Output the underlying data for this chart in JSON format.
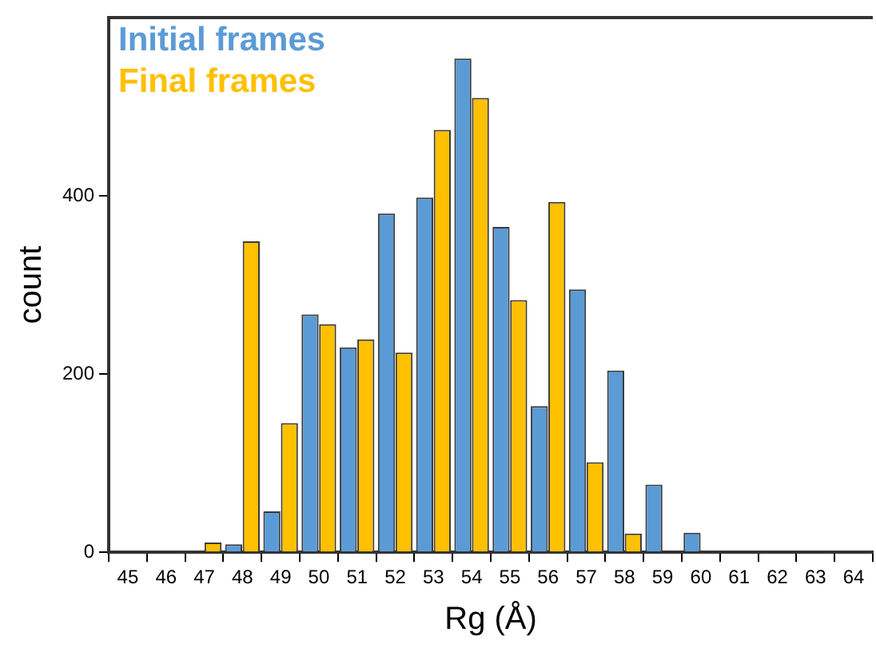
{
  "chart_data": {
    "type": "bar",
    "xlabel": "Rg (Å)",
    "ylabel": "count",
    "categories": [
      "45",
      "46",
      "47",
      "48",
      "49",
      "50",
      "51",
      "52",
      "53",
      "54",
      "55",
      "56",
      "57",
      "58",
      "59",
      "60",
      "61",
      "62",
      "63",
      "64"
    ],
    "series": [
      {
        "name": "Initial frames",
        "color": "#5b9bd5",
        "values": [
          0,
          0,
          0,
          9,
          46,
          267,
          230,
          380,
          398,
          554,
          365,
          164,
          295,
          204,
          76,
          22,
          0,
          0,
          0,
          0
        ]
      },
      {
        "name": "Final frames",
        "color": "#ffc000",
        "values": [
          0,
          0,
          11,
          349,
          145,
          256,
          239,
          224,
          474,
          510,
          283,
          393,
          101,
          21,
          0,
          0,
          0,
          0,
          0,
          0
        ]
      }
    ],
    "ylim": [
      0,
      600
    ],
    "yticks": [
      0,
      200,
      400
    ],
    "grid": false,
    "legend": "top left"
  }
}
